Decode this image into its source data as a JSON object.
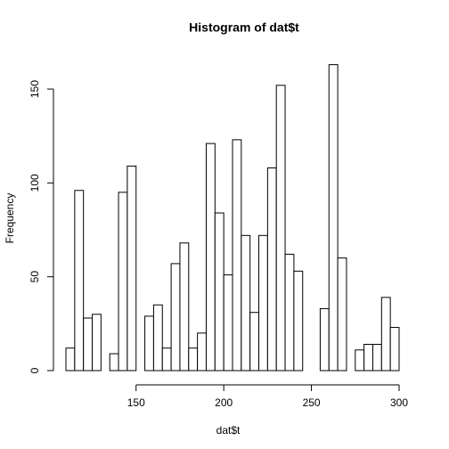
{
  "chart_data": {
    "type": "histogram",
    "title": "Histogram of dat$t",
    "x_label": "dat$t",
    "y_label": "Frequency",
    "bins": [
      110,
      115,
      120,
      125,
      130,
      135,
      140,
      145,
      150,
      155,
      160,
      165,
      170,
      175,
      180,
      185,
      190,
      195,
      200,
      205,
      210,
      215,
      220,
      225,
      230,
      235,
      240,
      245,
      250,
      255,
      260,
      265,
      270,
      275,
      280,
      285,
      290,
      295,
      300
    ],
    "counts": [
      12,
      96,
      28,
      30,
      0,
      9,
      95,
      109,
      0,
      29,
      35,
      12,
      57,
      68,
      12,
      20,
      121,
      84,
      51,
      123,
      72,
      31,
      72,
      108,
      152,
      62,
      53,
      0,
      0,
      33,
      163,
      60,
      0,
      11,
      14,
      14,
      39,
      23
    ],
    "color": "#ffffff",
    "edge_color": "#000000",
    "xlim": [
      110,
      300
    ],
    "ylim": [
      0,
      163
    ],
    "xticks": [
      150,
      200,
      250,
      300
    ],
    "yticks": [
      0,
      50,
      100,
      150
    ]
  }
}
